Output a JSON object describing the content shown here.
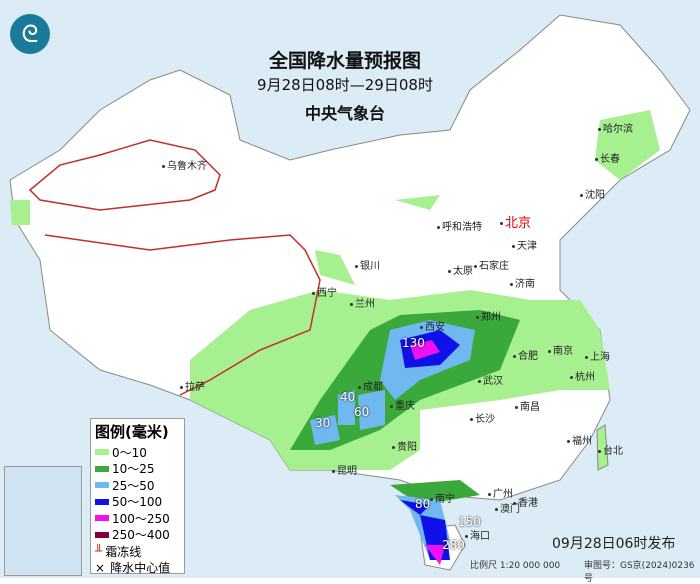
{
  "title": "全国降水量预报图",
  "period": "9月28日08时—29日08时",
  "issuer": "中央气象台",
  "legend": {
    "title": "图例(毫米)",
    "items": [
      {
        "label": "0～10",
        "color": "#a6f08f"
      },
      {
        "label": "10～25",
        "color": "#3aa83a"
      },
      {
        "label": "25～50",
        "color": "#6fb8f0"
      },
      {
        "label": "50～100",
        "color": "#1010e8"
      },
      {
        "label": "100～250",
        "color": "#f010f0"
      },
      {
        "label": "250～400",
        "color": "#800040"
      }
    ],
    "frost_line": "霜冻线",
    "center": "降水中心值"
  },
  "cities": [
    "乌鲁木齐",
    "哈尔滨",
    "长春",
    "沈阳",
    "北京",
    "天津",
    "呼和浩特",
    "石家庄",
    "太原",
    "济南",
    "银川",
    "西宁",
    "兰州",
    "郑州",
    "西安",
    "合肥",
    "南京",
    "上海",
    "杭州",
    "武汉",
    "成都",
    "重庆",
    "拉萨",
    "长沙",
    "南昌",
    "福州",
    "台北",
    "贵阳",
    "昆明",
    "南宁",
    "广州",
    "香港",
    "澳门",
    "海口"
  ],
  "centers": [
    "130",
    "40",
    "60",
    "30",
    "80",
    "150",
    "280"
  ],
  "issued": "09月28日06时发布",
  "scale": "比例尺 1:20 000 000",
  "review_no": "审图号：GS京(2024)0236号"
}
